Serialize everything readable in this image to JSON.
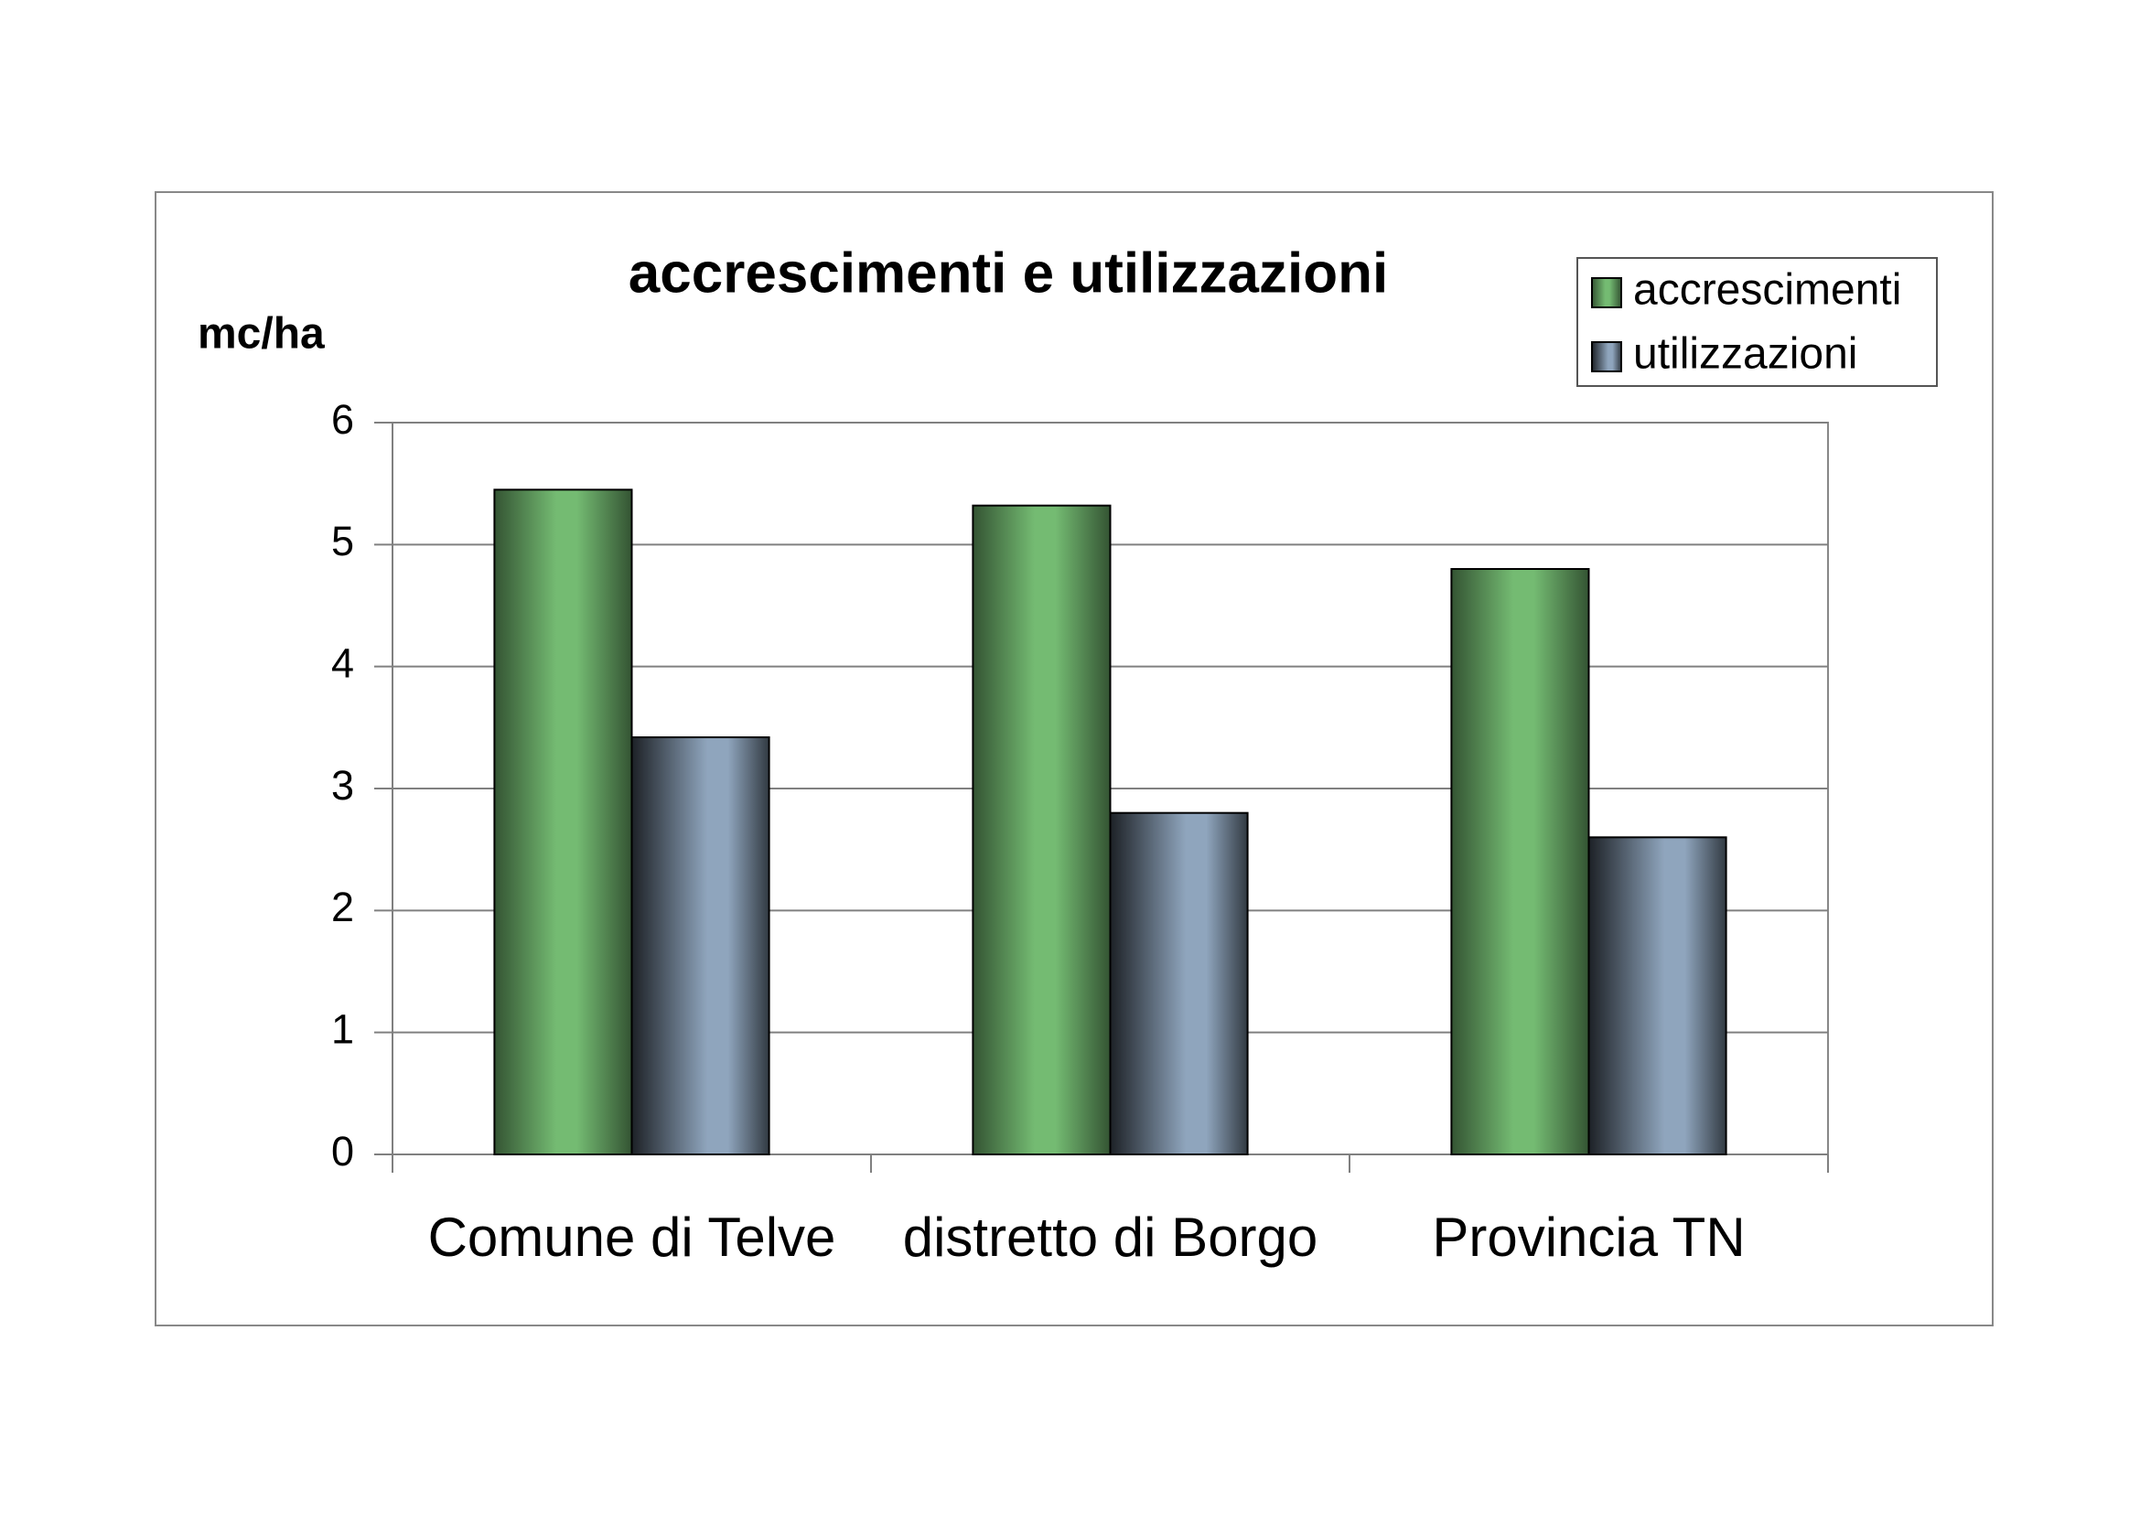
{
  "chart_data": {
    "type": "bar",
    "title": "accrescimenti e utilizzazioni",
    "y_label": "mc/ha",
    "categories": [
      "Comune di Telve",
      "distretto di Borgo",
      "Provincia TN"
    ],
    "series": [
      {
        "name": "accrescimenti",
        "color": "#74bb72",
        "values": [
          5.45,
          5.32,
          4.8
        ]
      },
      {
        "name": "utilizzazioni",
        "color": "#8fa5bd",
        "values": [
          3.42,
          2.8,
          2.6
        ]
      }
    ],
    "ylim": [
      0,
      6
    ],
    "yticks": [
      0,
      1,
      2,
      3,
      4,
      5,
      6
    ],
    "grid": true,
    "legend": "top-right"
  }
}
